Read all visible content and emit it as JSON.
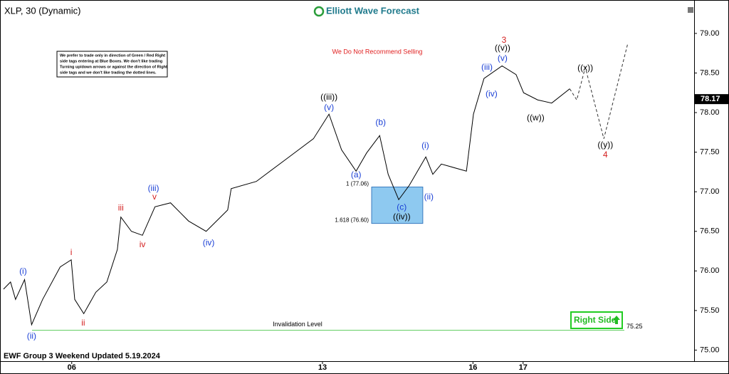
{
  "chart_data": {
    "type": "price",
    "title": "XLP, 30 (Dynamic)",
    "logo": "Elliott Wave Forecast",
    "footer": "EWF Group 3 Weekend Updated 5.19.2024",
    "note": [
      "We prefer to trade only in direction of Green / Red Right",
      "side tags entering at Blue Boxes. We don't like trading",
      "Turning up/down arrows or against the direction of Right",
      "side tags and we don't like trading the dotted lines."
    ],
    "warning": "We Do Not Recommend Selling",
    "right_side": "Right Side",
    "xlim": [
      -1.43,
      12.41
    ],
    "ylim": [
      74.86,
      79.35
    ],
    "xticks": [
      {
        "value": 0,
        "label": "06"
      },
      {
        "value": 5,
        "label": "13"
      },
      {
        "value": 8,
        "label": "16"
      },
      {
        "value": 9,
        "label": "17"
      }
    ],
    "yticks": [
      {
        "value": 75,
        "label": "75.00"
      },
      {
        "value": 75.5,
        "label": "75.50"
      },
      {
        "value": 76,
        "label": "76.00"
      },
      {
        "value": 76.5,
        "label": "76.50"
      },
      {
        "value": 77,
        "label": "77.00"
      },
      {
        "value": 77.5,
        "label": "77.50"
      },
      {
        "value": 78,
        "label": "78.00"
      },
      {
        "value": 78.5,
        "label": "78.50"
      },
      {
        "value": 79,
        "label": "79.00"
      }
    ],
    "last_price": 78.17,
    "series": [
      {
        "name": "XLP",
        "color": "#000000",
        "x": [
          -1.36,
          -1.22,
          -1.12,
          -0.94,
          -0.8,
          -0.58,
          -0.23,
          -0.01,
          0.06,
          0.24,
          0.48,
          0.7,
          0.91,
          0.98,
          1.19,
          1.41,
          1.66,
          1.97,
          2.33,
          2.68,
          3.11,
          3.18,
          3.68,
          4.25,
          4.82,
          5.13,
          5.38,
          5.67,
          5.88,
          6.14,
          6.31,
          6.52,
          6.73,
          7.06,
          7.2,
          7.37,
          7.87,
          8.01,
          8.22,
          8.58,
          8.86,
          9.01,
          9.29,
          9.57,
          9.93
        ],
        "values": [
          75.77,
          75.86,
          75.64,
          75.89,
          75.32,
          75.64,
          76.05,
          76.14,
          75.64,
          75.46,
          75.73,
          75.86,
          76.27,
          76.68,
          76.5,
          76.45,
          76.81,
          76.86,
          76.63,
          76.5,
          76.77,
          77.04,
          77.13,
          77.4,
          77.67,
          77.98,
          77.53,
          77.26,
          77.49,
          77.71,
          77.22,
          76.9,
          77.08,
          77.44,
          77.22,
          77.35,
          77.26,
          77.98,
          78.43,
          78.59,
          78.48,
          78.25,
          78.16,
          78.12,
          78.3
        ]
      },
      {
        "name": "Projection",
        "color": "#333333",
        "dashed": true,
        "x": [
          9.93,
          10.07,
          10.24,
          10.61,
          11.09
        ],
        "values": [
          78.3,
          78.16,
          78.57,
          77.67,
          78.88
        ]
      }
    ],
    "fib_box": {
      "x": [
        5.98,
        7.0
      ],
      "color": "#8ec9f0",
      "levels": [
        {
          "value": 77.06,
          "label": "1 (77.06)"
        },
        {
          "value": 76.6,
          "label": "1.618 (76.60)"
        }
      ]
    },
    "invalidation": {
      "value": 75.25,
      "text": "Invalidation Level",
      "color": "#5ccc5c"
    },
    "annotations": [
      {
        "text": "(i)",
        "color": "#1a3fd6",
        "x": -0.97,
        "y": 75.99
      },
      {
        "text": "(ii)",
        "color": "#1a3fd6",
        "x": -0.8,
        "y": 75.17
      },
      {
        "text": "i",
        "color": "#d42020",
        "x": -0.01,
        "y": 76.23
      },
      {
        "text": "ii",
        "color": "#d42020",
        "x": 0.23,
        "y": 75.34
      },
      {
        "text": "iii",
        "color": "#d42020",
        "x": 0.98,
        "y": 76.79
      },
      {
        "text": "iv",
        "color": "#d42020",
        "x": 1.41,
        "y": 76.33
      },
      {
        "text": "(iii)",
        "color": "#1a3fd6",
        "x": 1.63,
        "y": 77.04
      },
      {
        "text": "v",
        "color": "#d42020",
        "x": 1.65,
        "y": 76.93
      },
      {
        "text": "(iv)",
        "color": "#1a3fd6",
        "x": 2.73,
        "y": 76.35
      },
      {
        "text": "((iii))",
        "color": "#000000",
        "x": 5.13,
        "y": 78.19
      },
      {
        "text": "(v)",
        "color": "#1a3fd6",
        "x": 5.13,
        "y": 78.06
      },
      {
        "text": "(a)",
        "color": "#1a3fd6",
        "x": 5.67,
        "y": 77.21
      },
      {
        "text": "(b)",
        "color": "#1a3fd6",
        "x": 6.16,
        "y": 77.87
      },
      {
        "text": "(c)",
        "color": "#1a3fd6",
        "x": 6.58,
        "y": 76.8
      },
      {
        "text": "((iv))",
        "color": "#000000",
        "x": 6.58,
        "y": 76.68
      },
      {
        "text": "(i)",
        "color": "#1a3fd6",
        "x": 7.05,
        "y": 77.58
      },
      {
        "text": "(ii)",
        "color": "#1a3fd6",
        "x": 7.12,
        "y": 76.93
      },
      {
        "text": "(iii)",
        "color": "#1a3fd6",
        "x": 8.28,
        "y": 78.57
      },
      {
        "text": "(iv)",
        "color": "#1a3fd6",
        "x": 8.37,
        "y": 78.23
      },
      {
        "text": "(v)",
        "color": "#1a3fd6",
        "x": 8.59,
        "y": 78.68
      },
      {
        "text": "((v))",
        "color": "#000000",
        "x": 8.59,
        "y": 78.81
      },
      {
        "text": "3",
        "color": "#d42020",
        "x": 8.62,
        "y": 78.91
      },
      {
        "text": "((w))",
        "color": "#000000",
        "x": 9.25,
        "y": 77.93
      },
      {
        "text": "((x))",
        "color": "#000000",
        "x": 10.24,
        "y": 78.56
      },
      {
        "text": "((y))",
        "color": "#000000",
        "x": 10.64,
        "y": 77.59
      },
      {
        "text": "4",
        "color": "#d42020",
        "x": 10.64,
        "y": 77.46
      }
    ]
  }
}
